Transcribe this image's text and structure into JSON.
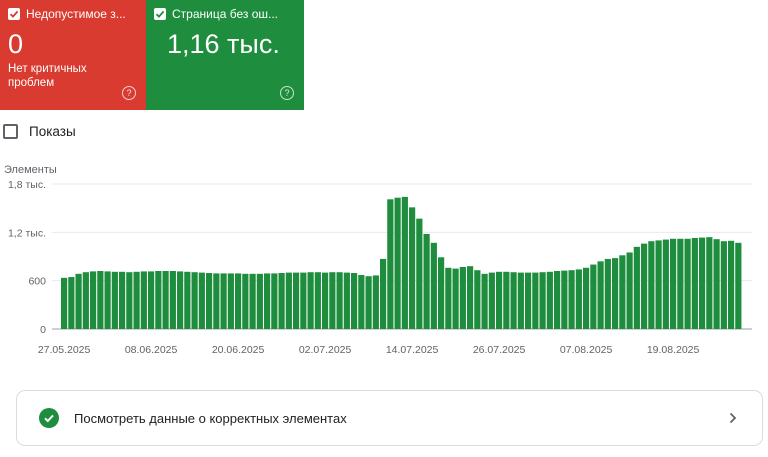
{
  "cards": [
    {
      "title": "Недопустимое з...",
      "value": "0",
      "subtitle": "Нет критичных проблем",
      "color": "#d93b30"
    },
    {
      "title": "Страница без ош...",
      "value": "1,16 тыс.",
      "color": "#1e8e3e"
    }
  ],
  "show_toggle": {
    "label": "Показы",
    "checked": false
  },
  "chart_data": {
    "type": "bar",
    "ylabel": "Элементы",
    "ylim": [
      0,
      1800
    ],
    "y_ticks": [
      {
        "value": 0,
        "label": "0"
      },
      {
        "value": 600,
        "label": "600"
      },
      {
        "value": 1200,
        "label": "1,2 тыс."
      },
      {
        "value": 1800,
        "label": "1,8 тыс."
      }
    ],
    "x_tick_labels": [
      "27.05.2025",
      "08.06.2025",
      "20.06.2025",
      "02.07.2025",
      "14.07.2025",
      "26.07.2025",
      "07.08.2025",
      "19.08.2025"
    ],
    "x_tick_indices": [
      0,
      12,
      24,
      36,
      48,
      60,
      72,
      84
    ],
    "bar_color": "#1e8e3e",
    "grid": true,
    "values": [
      635,
      645,
      685,
      705,
      715,
      720,
      715,
      710,
      710,
      705,
      710,
      715,
      715,
      720,
      720,
      720,
      715,
      710,
      705,
      700,
      695,
      690,
      690,
      690,
      690,
      685,
      685,
      685,
      690,
      690,
      695,
      700,
      700,
      700,
      705,
      705,
      700,
      705,
      705,
      700,
      695,
      670,
      655,
      665,
      870,
      1610,
      1630,
      1640,
      1510,
      1370,
      1180,
      1070,
      890,
      760,
      750,
      770,
      780,
      730,
      685,
      700,
      710,
      710,
      705,
      700,
      700,
      700,
      705,
      710,
      720,
      725,
      730,
      740,
      760,
      800,
      840,
      870,
      880,
      915,
      950,
      1020,
      1060,
      1090,
      1100,
      1110,
      1120,
      1120,
      1120,
      1130,
      1135,
      1140,
      1115,
      1090,
      1095,
      1070
    ]
  },
  "link_card": {
    "label": "Посмотреть данные о корректных элементах"
  }
}
